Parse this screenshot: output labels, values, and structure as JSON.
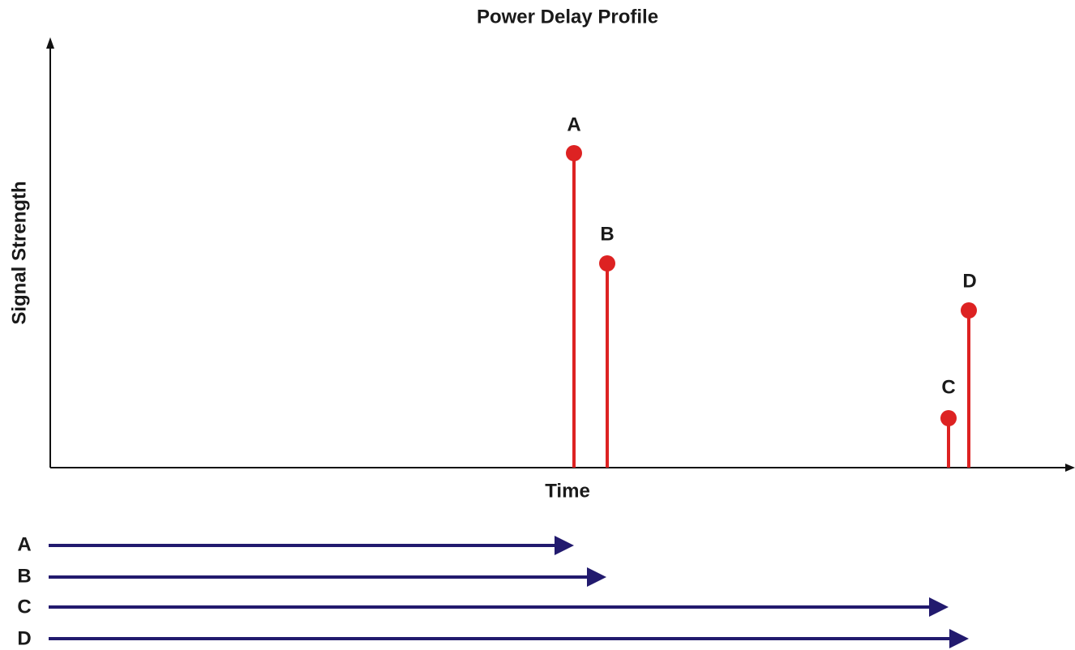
{
  "title": "Power Delay Profile",
  "y_axis_label": "Signal Strength",
  "x_axis_label": "Time",
  "paths": [
    {
      "label": "A"
    },
    {
      "label": "B"
    },
    {
      "label": "C"
    },
    {
      "label": "D"
    }
  ]
}
